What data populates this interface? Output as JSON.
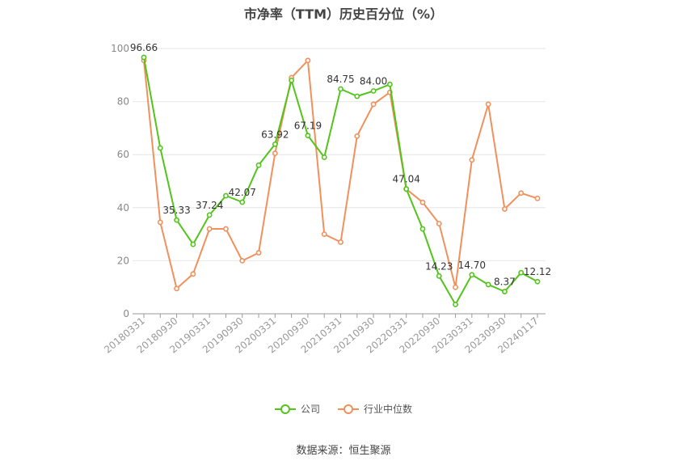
{
  "chart_data": {
    "type": "line",
    "title": "市净率（TTM）历史百分位（%）",
    "ylim": [
      0,
      100
    ],
    "yticks": [
      0,
      20,
      40,
      60,
      80,
      100
    ],
    "x": [
      "20180331",
      "20180630",
      "20180930",
      "20181231",
      "20190331",
      "20190630",
      "20190930",
      "20191231",
      "20200331",
      "20200630",
      "20200930",
      "20201231",
      "20210331",
      "20210630",
      "20210930",
      "20211231",
      "20220331",
      "20220630",
      "20220930",
      "20221231",
      "20230331",
      "20230630",
      "20230930",
      "20231231",
      "20240117"
    ],
    "x_tick_labels": [
      "20180331",
      "20180930",
      "20190331",
      "20190930",
      "20200331",
      "20200930",
      "20210331",
      "20210930",
      "20220331",
      "20220930",
      "20230331",
      "20230930",
      "20240117"
    ],
    "series": [
      {
        "name": "公司",
        "color": "#52c41a",
        "values": [
          96.66,
          62.5,
          35.33,
          26.2,
          37.24,
          44.5,
          42.07,
          56.0,
          63.92,
          88.0,
          67.19,
          59.0,
          84.75,
          82.0,
          84.0,
          86.5,
          47.04,
          32.0,
          14.23,
          3.5,
          14.7,
          11.0,
          8.37,
          15.5,
          12.12
        ]
      },
      {
        "name": "行业中位数",
        "color": "#f0915c",
        "values": [
          95.5,
          34.5,
          9.5,
          15.0,
          32.0,
          32.0,
          20.0,
          23.0,
          60.5,
          89.0,
          95.5,
          30.0,
          27.0,
          67.0,
          79.0,
          83.5,
          47.0,
          42.0,
          34.0,
          10.0,
          58.0,
          79.0,
          39.5,
          45.5,
          43.5
        ]
      }
    ],
    "data_labels": [
      {
        "index": 0,
        "text": "96.66"
      },
      {
        "index": 2,
        "text": "35.33"
      },
      {
        "index": 4,
        "text": "37.24"
      },
      {
        "index": 6,
        "text": "42.07"
      },
      {
        "index": 8,
        "text": "63.92"
      },
      {
        "index": 10,
        "text": "67.19"
      },
      {
        "index": 12,
        "text": "84.75"
      },
      {
        "index": 14,
        "text": "84.00"
      },
      {
        "index": 16,
        "text": "47.04"
      },
      {
        "index": 18,
        "text": "14.23"
      },
      {
        "index": 20,
        "text": "14.70"
      },
      {
        "index": 22,
        "text": "8.37"
      },
      {
        "index": 24,
        "text": "12.12"
      }
    ],
    "grid": true,
    "legend_position": "bottom-center"
  },
  "source": "数据来源：恒生聚源"
}
